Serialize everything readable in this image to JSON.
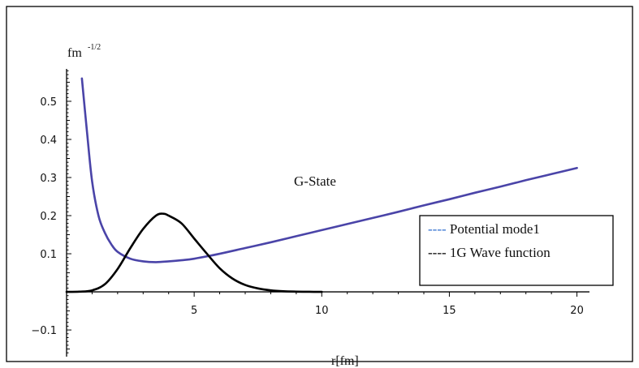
{
  "chart_data": {
    "type": "line",
    "title": "G-State",
    "ylabel": "fm",
    "ylabel_exponent": "-1/2",
    "xlabel": "r[fm]",
    "xlim": [
      0,
      20.3
    ],
    "ylim": [
      -0.17,
      0.585
    ],
    "x_ticks": [
      5,
      10,
      15,
      20
    ],
    "y_ticks": [
      -0.1,
      0.1,
      0.2,
      0.3,
      0.4,
      0.5
    ],
    "x_tick_labels": [
      "5",
      "10",
      "15",
      "20"
    ],
    "y_tick_labels": [
      "−0.1",
      "0.1",
      "0.2",
      "0.3",
      "0.4",
      "0.5"
    ],
    "legend_position": "lower-right",
    "series": [
      {
        "name": "Potential mode1",
        "legend_label": "---- Potential mode1",
        "color": "#4a44a8",
        "x": [
          0.6,
          0.8,
          1.0,
          1.25,
          1.5,
          1.75,
          2.0,
          2.5,
          3.0,
          3.5,
          4.0,
          4.5,
          5.0,
          6.0,
          7.0,
          8.0,
          9.0,
          10.0,
          11.0,
          12.0,
          13.0,
          14.0,
          15.0,
          16.0,
          17.0,
          18.0,
          19.0,
          20.0
        ],
        "y": [
          0.56,
          0.42,
          0.29,
          0.2,
          0.155,
          0.125,
          0.105,
          0.087,
          0.08,
          0.078,
          0.08,
          0.083,
          0.087,
          0.1,
          0.115,
          0.13,
          0.146,
          0.162,
          0.178,
          0.194,
          0.21,
          0.227,
          0.243,
          0.26,
          0.276,
          0.293,
          0.309,
          0.325
        ]
      },
      {
        "name": "1G Wave function",
        "legend_label": "---- 1G Wave function",
        "color": "#000000",
        "x": [
          0.0,
          0.5,
          1.0,
          1.5,
          2.0,
          2.5,
          3.0,
          3.5,
          3.8,
          4.0,
          4.5,
          5.0,
          5.5,
          6.0,
          6.5,
          7.0,
          7.5,
          8.0,
          8.5,
          9.0,
          9.5,
          10.0
        ],
        "y": [
          0.0,
          0.0005,
          0.004,
          0.02,
          0.06,
          0.115,
          0.165,
          0.2,
          0.205,
          0.2,
          0.18,
          0.14,
          0.1,
          0.062,
          0.035,
          0.018,
          0.009,
          0.004,
          0.0015,
          0.0006,
          0.0002,
          0.0
        ]
      }
    ]
  }
}
